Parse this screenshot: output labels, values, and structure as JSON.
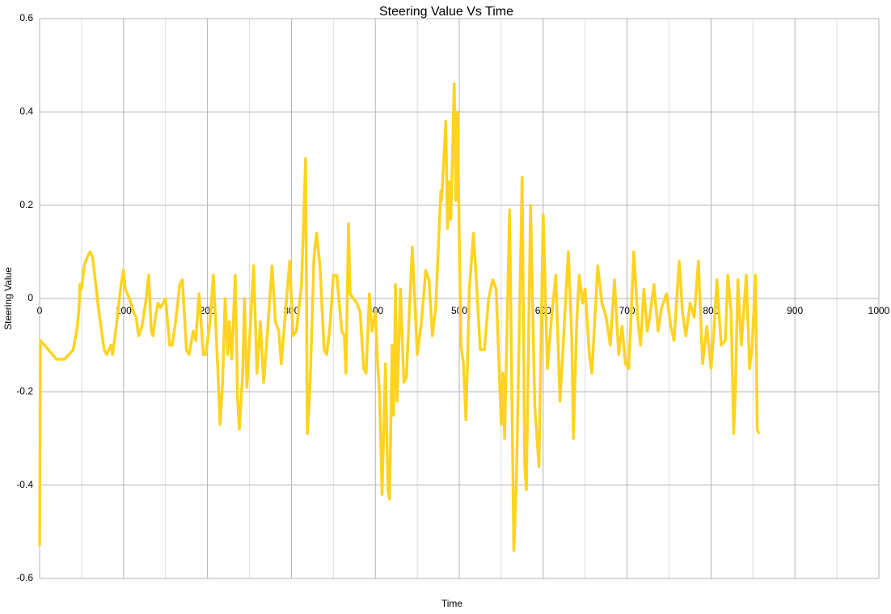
{
  "chart_data": {
    "type": "line",
    "title": "Steering Value Vs Time",
    "x_label": "Time",
    "y_label": "Steering Value",
    "xlim": [
      0,
      1000
    ],
    "xticks": [
      0,
      100,
      200,
      300,
      400,
      500,
      600,
      700,
      800,
      900,
      1000
    ],
    "x_minor_ticks": [
      50,
      150,
      250,
      350,
      450,
      550,
      650,
      750,
      850,
      950
    ],
    "ylim": [
      -0.6,
      0.6
    ],
    "yticks": [
      0.6,
      0.4,
      0.2,
      0,
      -0.2,
      -0.4,
      -0.6
    ],
    "grid": true,
    "series": [
      {
        "name": "Steering Value",
        "color": "#ffd320",
        "x": [
          0,
          1,
          20,
          30,
          35,
          40,
          45,
          47,
          48,
          50,
          53,
          57,
          60,
          63,
          67,
          70,
          73,
          77,
          80,
          85,
          87,
          92,
          97,
          100,
          102,
          107,
          112,
          115,
          118,
          122,
          127,
          130,
          133,
          135,
          138,
          141,
          144,
          150,
          155,
          158,
          162,
          167,
          170,
          175,
          178,
          183,
          186,
          190,
          195,
          198,
          203,
          207,
          212,
          215,
          218,
          221,
          224,
          226,
          229,
          233,
          236,
          238,
          242,
          244,
          247,
          255,
          259,
          263,
          267,
          272,
          277,
          281,
          285,
          288,
          292,
          298,
          302,
          306,
          312,
          317,
          319,
          322,
          327,
          330,
          334,
          339,
          342,
          346,
          350,
          354,
          360,
          363,
          365,
          368,
          370,
          378,
          382,
          386,
          389,
          393,
          396,
          400,
          403,
          405,
          408,
          412,
          415,
          417,
          420,
          422,
          424,
          426,
          430,
          434,
          437,
          444,
          450,
          455,
          460,
          464,
          468,
          472,
          478,
          479,
          484,
          486,
          488,
          490,
          494,
          496,
          498,
          500,
          502,
          505,
          508,
          512,
          517,
          520,
          525,
          530,
          535,
          540,
          544,
          550,
          552,
          554,
          560,
          565,
          568,
          575,
          578,
          580,
          585,
          590,
          595,
          600,
          605,
          610,
          615,
          620,
          625,
          630,
          634,
          636,
          640,
          643,
          647,
          650,
          655,
          658,
          665,
          670,
          675,
          680,
          685,
          690,
          694,
          698,
          702,
          708,
          713,
          716,
          720,
          724,
          727,
          732,
          737,
          741,
          747,
          752,
          756,
          762,
          766,
          770,
          775,
          780,
          785,
          790,
          795,
          800,
          803,
          807,
          812,
          817,
          820,
          824,
          827,
          829,
          832,
          836,
          842,
          846,
          849,
          853,
          855,
          857
        ],
        "values": [
          -0.53,
          -0.09,
          -0.13,
          -0.13,
          -0.12,
          -0.11,
          -0.06,
          -0.02,
          0.03,
          0.02,
          0.07,
          0.09,
          0.1,
          0.09,
          0.03,
          -0.02,
          -0.06,
          -0.11,
          -0.12,
          -0.1,
          -0.12,
          -0.05,
          0.03,
          0.06,
          0.02,
          0,
          -0.03,
          -0.04,
          -0.08,
          -0.06,
          0,
          0.05,
          -0.07,
          -0.08,
          -0.04,
          -0.01,
          -0.02,
          0,
          -0.1,
          -0.1,
          -0.05,
          0.03,
          0.04,
          -0.11,
          -0.12,
          -0.07,
          -0.09,
          0.01,
          -0.12,
          -0.12,
          -0.05,
          0.05,
          -0.14,
          -0.27,
          -0.18,
          0,
          -0.12,
          -0.05,
          -0.13,
          0.05,
          -0.22,
          -0.28,
          -0.16,
          0,
          -0.19,
          0.07,
          -0.16,
          -0.05,
          -0.18,
          -0.06,
          0.07,
          -0.05,
          -0.07,
          -0.14,
          -0.05,
          0.08,
          -0.08,
          -0.07,
          0.03,
          0.3,
          -0.29,
          -0.2,
          0.09,
          0.14,
          0.07,
          -0.11,
          -0.12,
          -0.06,
          0.05,
          0.05,
          -0.07,
          -0.08,
          -0.16,
          0.16,
          0.01,
          -0.01,
          -0.03,
          -0.15,
          -0.16,
          0.01,
          -0.07,
          -0.03,
          -0.15,
          -0.2,
          -0.42,
          -0.14,
          -0.41,
          -0.43,
          -0.1,
          -0.25,
          0.03,
          -0.22,
          0.02,
          -0.18,
          -0.17,
          0.11,
          -0.12,
          -0.05,
          0.06,
          0.04,
          -0.08,
          -0.02,
          0.23,
          0.21,
          0.38,
          0.15,
          0.25,
          0.17,
          0.46,
          0.21,
          0.4,
          0.13,
          -0.1,
          -0.14,
          -0.26,
          0.02,
          0.14,
          0.05,
          -0.11,
          -0.11,
          0,
          0.04,
          0.02,
          -0.27,
          -0.16,
          -0.3,
          0.19,
          -0.54,
          -0.4,
          0.26,
          -0.36,
          -0.41,
          0.2,
          -0.23,
          -0.36,
          0.18,
          -0.15,
          -0.04,
          0.05,
          -0.22,
          -0.06,
          0.1,
          -0.08,
          -0.3,
          -0.05,
          0.05,
          -0.01,
          0.02,
          -0.12,
          -0.16,
          0.07,
          -0.01,
          -0.04,
          -0.1,
          0.04,
          -0.12,
          -0.06,
          -0.14,
          -0.15,
          0.1,
          -0.05,
          -0.1,
          0.02,
          -0.07,
          -0.04,
          0.03,
          -0.07,
          -0.02,
          0.01,
          -0.06,
          -0.09,
          0.08,
          -0.03,
          -0.08,
          -0.01,
          -0.04,
          0.08,
          -0.14,
          -0.06,
          -0.15,
          -0.08,
          0.04,
          -0.1,
          -0.09,
          0.05,
          -0.03,
          -0.29,
          -0.2,
          0.04,
          -0.1,
          0.05,
          -0.15,
          -0.1,
          0.05,
          -0.28,
          -0.29
        ]
      }
    ]
  }
}
